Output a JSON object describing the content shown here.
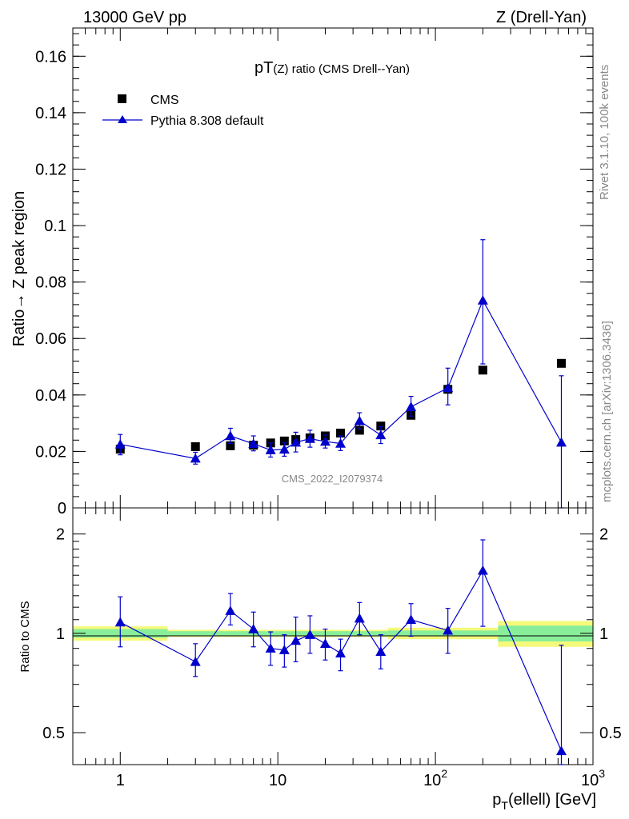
{
  "header": {
    "left": "13000 GeV pp",
    "right": "Z (Drell-Yan)"
  },
  "side_labels": {
    "rivet": "Rivet 3.1.10,  100k events",
    "mcplots": "mcplots.cern.ch [arXiv:1306.3436]"
  },
  "chart_data": [
    {
      "type": "scatter",
      "panel": "main",
      "title_main": "pT",
      "title_sub": "(Z)",
      "title_rest": " ratio (CMS Drell--Yan)",
      "ylabel": "Ratio→ Z peak region",
      "watermark": "CMS_2022_I2079374",
      "x_scale": "log",
      "xlim": [
        0.5,
        1000
      ],
      "ylim": [
        0,
        0.17
      ],
      "y_ticks": [
        0,
        0.02,
        0.04,
        0.06,
        0.08,
        0.1,
        0.12,
        0.14,
        0.16
      ],
      "y_tick_labels": [
        "0",
        "0.02",
        "0.04",
        "0.06",
        "0.08",
        "0.1",
        "0.12",
        "0.14",
        "0.16"
      ],
      "legend": {
        "placement": "top-left",
        "entries": [
          {
            "name": "CMS",
            "marker": "square",
            "color": "#000000"
          },
          {
            "name": "Pythia 8.308 default",
            "marker": "triangle",
            "color": "#0000cc"
          }
        ]
      },
      "series": [
        {
          "name": "CMS",
          "color": "#000000",
          "points": [
            {
              "x": 1,
              "y": 0.0208
            },
            {
              "x": 3,
              "y": 0.0217
            },
            {
              "x": 5,
              "y": 0.022
            },
            {
              "x": 7,
              "y": 0.0222
            },
            {
              "x": 9,
              "y": 0.023
            },
            {
              "x": 11,
              "y": 0.0237
            },
            {
              "x": 13,
              "y": 0.0242
            },
            {
              "x": 16,
              "y": 0.0248
            },
            {
              "x": 20,
              "y": 0.0255
            },
            {
              "x": 25,
              "y": 0.0265
            },
            {
              "x": 33,
              "y": 0.0275
            },
            {
              "x": 45,
              "y": 0.029
            },
            {
              "x": 70,
              "y": 0.0328
            },
            {
              "x": 120,
              "y": 0.042
            },
            {
              "x": 200,
              "y": 0.0488
            },
            {
              "x": 630,
              "y": 0.0512
            }
          ]
        },
        {
          "name": "Pythia 8.308 default",
          "color": "#0000cc",
          "points": [
            {
              "x": 1,
              "y": 0.0225,
              "ylo": 0.0188,
              "yhi": 0.026
            },
            {
              "x": 3,
              "y": 0.0175,
              "ylo": 0.0155,
              "yhi": 0.0197
            },
            {
              "x": 5,
              "y": 0.0255,
              "ylo": 0.0228,
              "yhi": 0.0282
            },
            {
              "x": 7,
              "y": 0.0227,
              "ylo": 0.0202,
              "yhi": 0.0255
            },
            {
              "x": 9,
              "y": 0.0205,
              "ylo": 0.018,
              "yhi": 0.023
            },
            {
              "x": 11,
              "y": 0.0207,
              "ylo": 0.0183,
              "yhi": 0.0232
            },
            {
              "x": 13,
              "y": 0.0232,
              "ylo": 0.0198,
              "yhi": 0.0268
            },
            {
              "x": 16,
              "y": 0.0245,
              "ylo": 0.0215,
              "yhi": 0.0275
            },
            {
              "x": 20,
              "y": 0.0235,
              "ylo": 0.0212,
              "yhi": 0.0258
            },
            {
              "x": 25,
              "y": 0.0228,
              "ylo": 0.0203,
              "yhi": 0.0255
            },
            {
              "x": 33,
              "y": 0.0308,
              "ylo": 0.028,
              "yhi": 0.0337
            },
            {
              "x": 45,
              "y": 0.0258,
              "ylo": 0.0228,
              "yhi": 0.0288
            },
            {
              "x": 70,
              "y": 0.0358,
              "ylo": 0.0325,
              "yhi": 0.0395
            },
            {
              "x": 120,
              "y": 0.0425,
              "ylo": 0.0365,
              "yhi": 0.0495
            },
            {
              "x": 200,
              "y": 0.0735,
              "ylo": 0.051,
              "yhi": 0.095
            },
            {
              "x": 630,
              "y": 0.0232,
              "ylo": 0.0,
              "yhi": 0.0468
            }
          ]
        }
      ]
    },
    {
      "type": "scatter",
      "panel": "ratio",
      "ylabel": "Ratio to CMS",
      "xlabel_main": "p",
      "xlabel_sub": "T",
      "xlabel_rest": "(ellell) [GeV]",
      "x_scale": "log",
      "y_scale": "log",
      "xlim": [
        0.5,
        1000
      ],
      "ylim": [
        0.4,
        2.4
      ],
      "x_ticks": [
        1,
        10,
        100,
        1000
      ],
      "x_tick_labels": [
        {
          "base": "1",
          "exp": ""
        },
        {
          "base": "10",
          "exp": ""
        },
        {
          "base": "10",
          "exp": "2"
        },
        {
          "base": "10",
          "exp": "3"
        }
      ],
      "y_ticks": [
        0.5,
        1,
        2
      ],
      "y_tick_labels": [
        "0.5",
        "1",
        "2"
      ],
      "uncertainty_bands": [
        {
          "x0": 0.5,
          "x1": 2,
          "ylo": 0.95,
          "yhi": 1.05,
          "inner_lo": 0.97,
          "inner_hi": 1.03
        },
        {
          "x0": 2,
          "x1": 50,
          "ylo": 0.975,
          "yhi": 1.025,
          "inner_lo": 0.985,
          "inner_hi": 1.015
        },
        {
          "x0": 50,
          "x1": 250,
          "ylo": 0.96,
          "yhi": 1.04,
          "inner_lo": 0.98,
          "inner_hi": 1.02
        },
        {
          "x0": 250,
          "x1": 1000,
          "ylo": 0.91,
          "yhi": 1.09,
          "inner_lo": 0.945,
          "inner_hi": 1.055
        }
      ],
      "series": [
        {
          "name": "Pythia 8.308 default",
          "color": "#0000cc",
          "points": [
            {
              "x": 1,
              "y": 1.08,
              "ylo": 0.91,
              "yhi": 1.29
            },
            {
              "x": 3,
              "y": 0.82,
              "ylo": 0.74,
              "yhi": 0.93
            },
            {
              "x": 5,
              "y": 1.17,
              "ylo": 1.06,
              "yhi": 1.32
            },
            {
              "x": 7,
              "y": 1.03,
              "ylo": 0.91,
              "yhi": 1.16
            },
            {
              "x": 9,
              "y": 0.9,
              "ylo": 0.8,
              "yhi": 1.01
            },
            {
              "x": 11,
              "y": 0.89,
              "ylo": 0.79,
              "yhi": 0.99
            },
            {
              "x": 13,
              "y": 0.95,
              "ylo": 0.82,
              "yhi": 1.12
            },
            {
              "x": 16,
              "y": 0.99,
              "ylo": 0.87,
              "yhi": 1.13
            },
            {
              "x": 20,
              "y": 0.93,
              "ylo": 0.83,
              "yhi": 1.03
            },
            {
              "x": 25,
              "y": 0.87,
              "ylo": 0.77,
              "yhi": 0.96
            },
            {
              "x": 33,
              "y": 1.11,
              "ylo": 0.99,
              "yhi": 1.24
            },
            {
              "x": 45,
              "y": 0.88,
              "ylo": 0.78,
              "yhi": 0.99
            },
            {
              "x": 70,
              "y": 1.1,
              "ylo": 0.98,
              "yhi": 1.23
            },
            {
              "x": 120,
              "y": 1.02,
              "ylo": 0.87,
              "yhi": 1.19
            },
            {
              "x": 200,
              "y": 1.55,
              "ylo": 1.05,
              "yhi": 1.92
            },
            {
              "x": 630,
              "y": 0.44,
              "ylo": 0.4,
              "yhi": 0.92
            }
          ]
        }
      ]
    }
  ]
}
